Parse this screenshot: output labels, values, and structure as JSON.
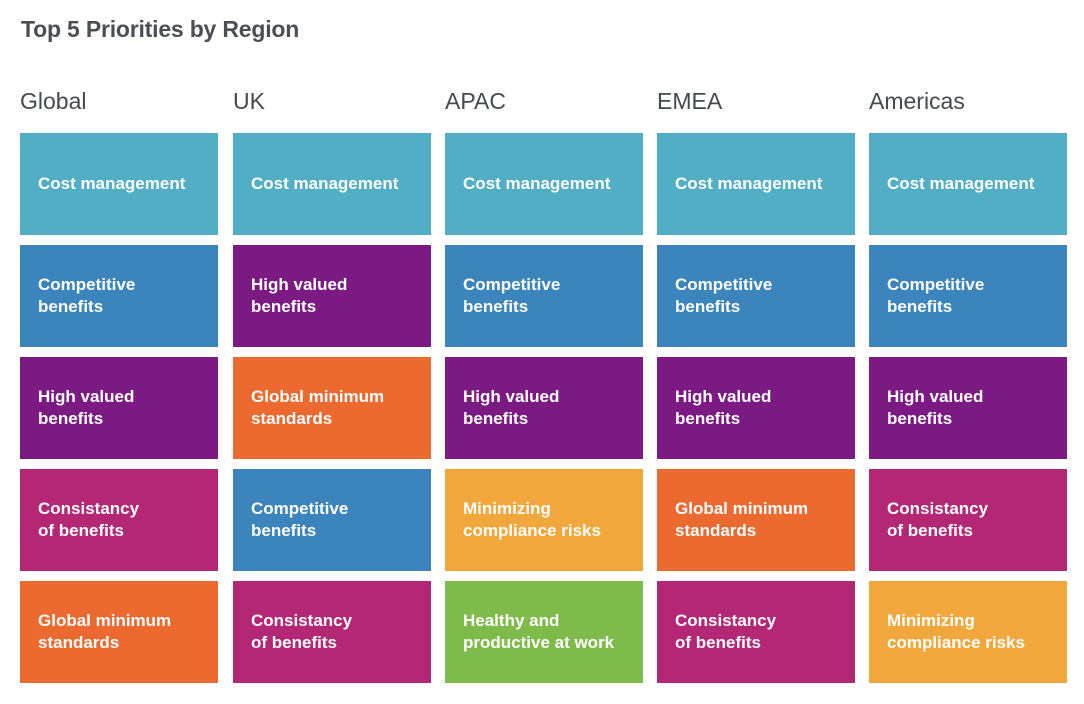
{
  "title": "Top 5 Priorities by Region",
  "colors": {
    "cost": "#52aec5",
    "competitive": "#3b84bc",
    "high_valued": "#7a1a82",
    "consistancy": "#b42774",
    "global_min": "#ec6930",
    "minimizing": "#f2a73c",
    "healthy": "#7fbb4a"
  },
  "regions": [
    {
      "name": "Global",
      "items": [
        {
          "lines": [
            "Cost management"
          ],
          "color": "#52aec5"
        },
        {
          "lines": [
            "Competitive",
            "benefits"
          ],
          "color": "#3b84bc"
        },
        {
          "lines": [
            "High valued",
            "benefits"
          ],
          "color": "#7a1a82"
        },
        {
          "lines": [
            "Consistancy",
            "of benefits"
          ],
          "color": "#b42774"
        },
        {
          "lines": [
            "Global minimum",
            "standards"
          ],
          "color": "#ec6930"
        }
      ]
    },
    {
      "name": "UK",
      "items": [
        {
          "lines": [
            "Cost management"
          ],
          "color": "#52aec5"
        },
        {
          "lines": [
            "High valued",
            "benefits"
          ],
          "color": "#7a1a82"
        },
        {
          "lines": [
            "Global minimum",
            "standards"
          ],
          "color": "#ec6930"
        },
        {
          "lines": [
            "Competitive",
            "benefits"
          ],
          "color": "#3b84bc"
        },
        {
          "lines": [
            "Consistancy",
            "of benefits"
          ],
          "color": "#b42774"
        }
      ]
    },
    {
      "name": "APAC",
      "items": [
        {
          "lines": [
            "Cost management"
          ],
          "color": "#52aec5"
        },
        {
          "lines": [
            "Competitive",
            "benefits"
          ],
          "color": "#3b84bc"
        },
        {
          "lines": [
            "High valued",
            "benefits"
          ],
          "color": "#7a1a82"
        },
        {
          "lines": [
            "Minimizing",
            "compliance risks"
          ],
          "color": "#f2a73c"
        },
        {
          "lines": [
            "Healthy and",
            "productive at work"
          ],
          "color": "#7fbb4a"
        }
      ]
    },
    {
      "name": "EMEA",
      "items": [
        {
          "lines": [
            "Cost management"
          ],
          "color": "#52aec5"
        },
        {
          "lines": [
            "Competitive",
            "benefits"
          ],
          "color": "#3b84bc"
        },
        {
          "lines": [
            "High valued",
            "benefits"
          ],
          "color": "#7a1a82"
        },
        {
          "lines": [
            "Global minimum",
            "standards"
          ],
          "color": "#ec6930"
        },
        {
          "lines": [
            "Consistancy",
            "of benefits"
          ],
          "color": "#b42774"
        }
      ]
    },
    {
      "name": "Americas",
      "items": [
        {
          "lines": [
            "Cost management"
          ],
          "color": "#52aec5"
        },
        {
          "lines": [
            "Competitive",
            "benefits"
          ],
          "color": "#3b84bc"
        },
        {
          "lines": [
            "High valued",
            "benefits"
          ],
          "color": "#7a1a82"
        },
        {
          "lines": [
            "Consistancy",
            "of benefits"
          ],
          "color": "#b42774"
        },
        {
          "lines": [
            "Minimizing",
            "compliance risks"
          ],
          "color": "#f2a73c"
        }
      ]
    }
  ]
}
